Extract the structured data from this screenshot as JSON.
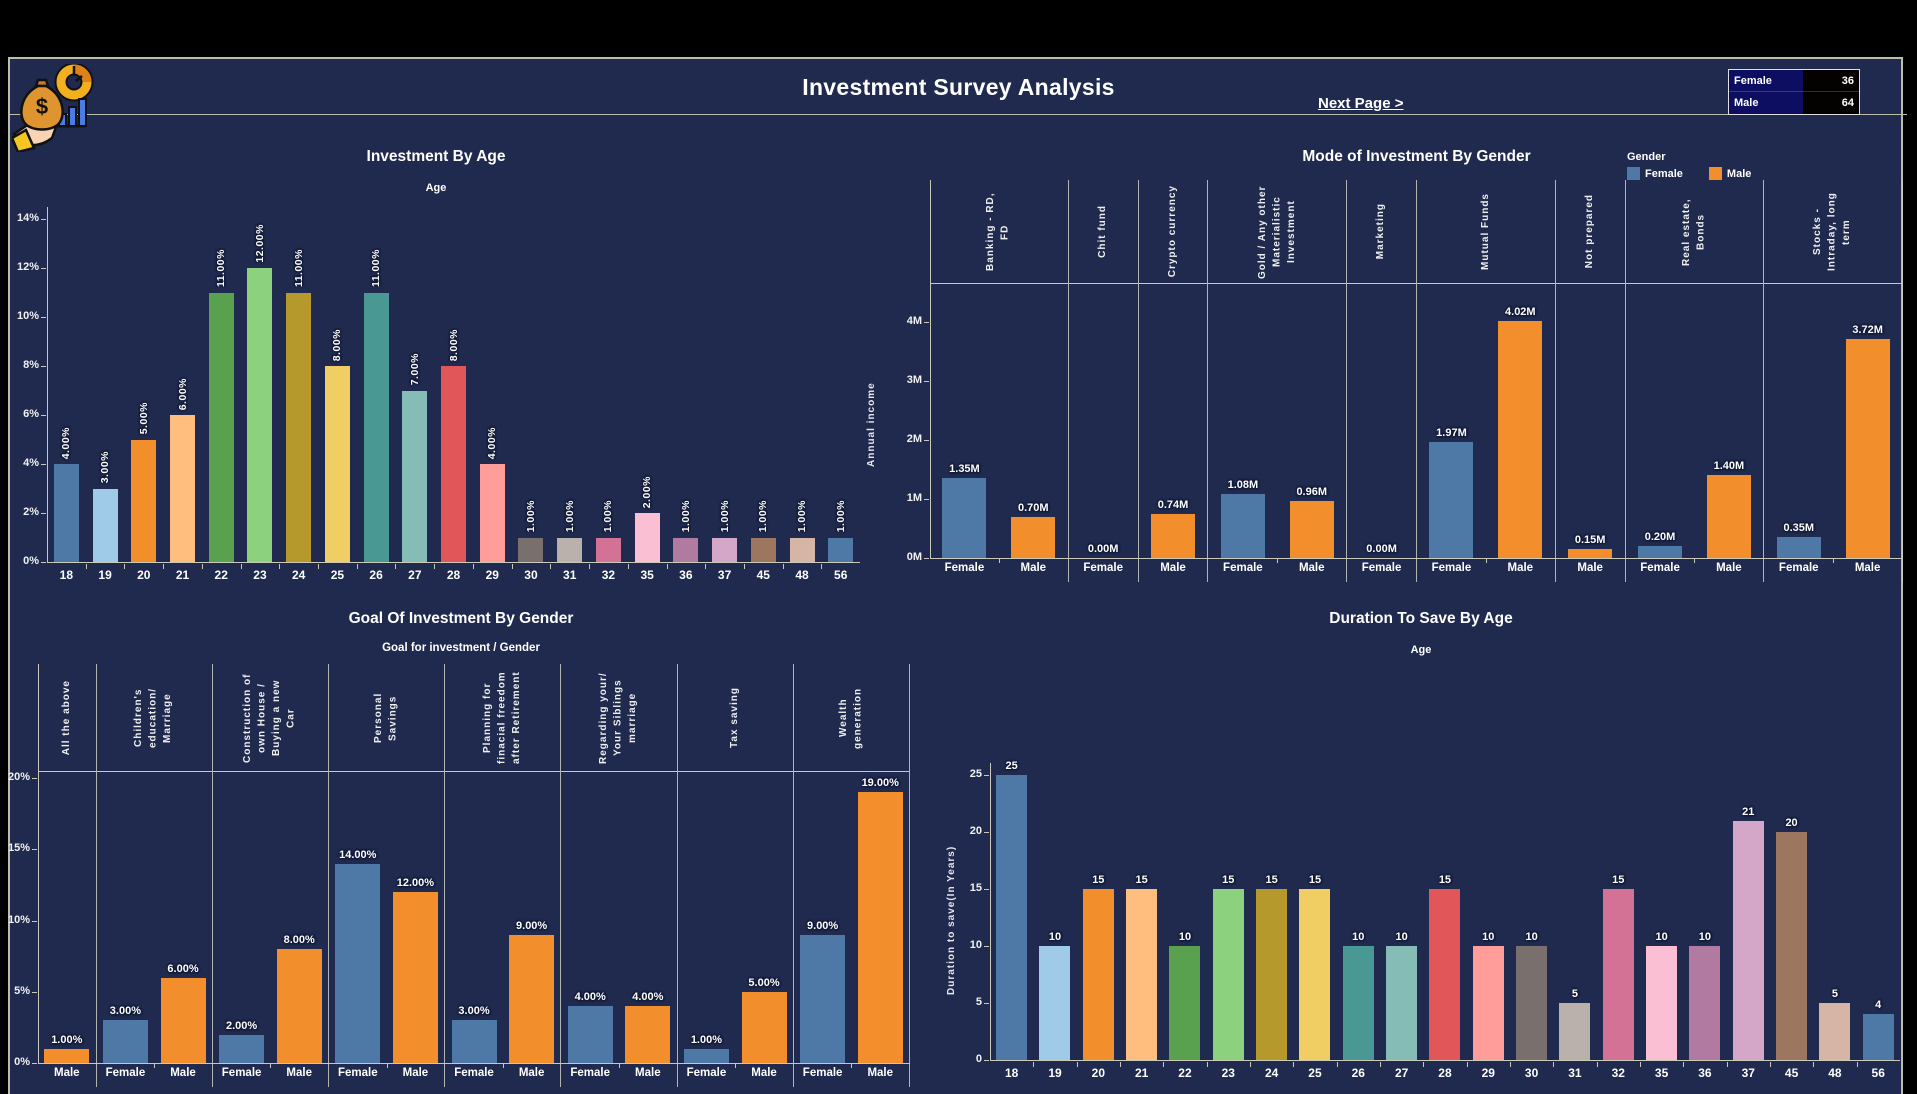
{
  "header": {
    "title": "Investment Survey Analysis",
    "next_page_label": "Next Page >",
    "logo_icons": [
      "hand-icon",
      "money-bag-icon",
      "donut-chart-icon",
      "bar-chart-icon"
    ],
    "summary_table": {
      "rows": [
        {
          "label": "Female",
          "value": "36"
        },
        {
          "label": "Male",
          "value": "64"
        }
      ]
    }
  },
  "colors": {
    "background": "#000000",
    "panel": "#1f2a4e",
    "border": "#bdbdae",
    "female": "#4e79a7",
    "male": "#f28e2b"
  },
  "chart_data": [
    {
      "id": "investment-by-age",
      "type": "bar",
      "title": "Investment By Age",
      "subtitle": "Age",
      "ylim": [
        0,
        14
      ],
      "yticks": [
        "0%",
        "2%",
        "4%",
        "6%",
        "8%",
        "10%",
        "12%",
        "14%"
      ],
      "categories": [
        "18",
        "19",
        "20",
        "21",
        "22",
        "23",
        "24",
        "25",
        "26",
        "27",
        "28",
        "29",
        "30",
        "31",
        "32",
        "35",
        "36",
        "37",
        "45",
        "48",
        "56"
      ],
      "values": [
        4,
        3,
        5,
        6,
        11,
        12,
        11,
        8,
        11,
        7,
        8,
        4,
        1,
        1,
        1,
        2,
        1,
        1,
        1,
        1,
        1
      ],
      "labels": [
        "4.00%",
        "3.00%",
        "5.00%",
        "6.00%",
        "11.00%",
        "12.00%",
        "11.00%",
        "8.00%",
        "11.00%",
        "7.00%",
        "8.00%",
        "4.00%",
        "1.00%",
        "1.00%",
        "1.00%",
        "2.00%",
        "1.00%",
        "1.00%",
        "1.00%",
        "1.00%",
        "1.00%"
      ],
      "bar_colors": [
        "#4E79A7",
        "#A0CBE8",
        "#F28E2B",
        "#FFBE7D",
        "#59A14F",
        "#8CD17D",
        "#B6992D",
        "#F1CE63",
        "#499894",
        "#86BCB6",
        "#E15759",
        "#FF9D9A",
        "#79706E",
        "#BAB0AC",
        "#D37295",
        "#FABFD2",
        "#B07AA1",
        "#D4A6C8",
        "#9D7660",
        "#D7B5A6",
        "#4E79A7"
      ]
    },
    {
      "id": "mode-of-investment-by-gender",
      "type": "grouped-bar",
      "title": "Mode of Investment By Gender",
      "ylabel": "Annual income",
      "ylim": [
        0,
        4
      ],
      "yticks": [
        "0M",
        "1M",
        "2M",
        "3M",
        "4M"
      ],
      "legend": {
        "title": "Gender",
        "items": [
          {
            "label": "Female",
            "color": "#4e79a7"
          },
          {
            "label": "Male",
            "color": "#f28e2b"
          }
        ]
      },
      "groups": [
        {
          "label": "Banking - RD, FD",
          "bars": [
            {
              "gender": "Female",
              "value": 1.35,
              "label": "1.35M"
            },
            {
              "gender": "Male",
              "value": 0.7,
              "label": "0.70M"
            }
          ]
        },
        {
          "label": "Chit fund",
          "bars": [
            {
              "gender": "Female",
              "value": 0,
              "label": "0.00M"
            }
          ]
        },
        {
          "label": "Crypto currency",
          "bars": [
            {
              "gender": "Male",
              "value": 0.74,
              "label": "0.74M"
            }
          ]
        },
        {
          "label": "Gold / Any other Materialistic Investment",
          "bars": [
            {
              "gender": "Female",
              "value": 1.08,
              "label": "1.08M"
            },
            {
              "gender": "Male",
              "value": 0.96,
              "label": "0.96M"
            }
          ]
        },
        {
          "label": "Marketing",
          "bars": [
            {
              "gender": "Female",
              "value": 0,
              "label": "0.00M"
            }
          ]
        },
        {
          "label": "Mutual Funds",
          "bars": [
            {
              "gender": "Female",
              "value": 1.97,
              "label": "1.97M"
            },
            {
              "gender": "Male",
              "value": 4.02,
              "label": "4.02M"
            }
          ]
        },
        {
          "label": "Not prepared",
          "bars": [
            {
              "gender": "Male",
              "value": 0.15,
              "label": "0.15M"
            }
          ]
        },
        {
          "label": "Real estate, Bonds",
          "bars": [
            {
              "gender": "Female",
              "value": 0.2,
              "label": "0.20M"
            },
            {
              "gender": "Male",
              "value": 1.4,
              "label": "1.40M"
            }
          ]
        },
        {
          "label": "Stocks - Intraday, long term",
          "bars": [
            {
              "gender": "Female",
              "value": 0.35,
              "label": "0.35M"
            },
            {
              "gender": "Male",
              "value": 3.72,
              "label": "3.72M"
            }
          ]
        }
      ]
    },
    {
      "id": "goal-of-investment-by-gender",
      "type": "grouped-bar",
      "title": "Goal Of Investment By Gender",
      "subtitle": "Goal for investment / Gender",
      "ylim": [
        0,
        20
      ],
      "yticks": [
        "0%",
        "5%",
        "10%",
        "15%",
        "20%"
      ],
      "groups": [
        {
          "label": "All the above",
          "bars": [
            {
              "gender": "Male",
              "value": 1,
              "label": "1.00%"
            }
          ]
        },
        {
          "label": "Children's education/ Marriage",
          "bars": [
            {
              "gender": "Female",
              "value": 3,
              "label": "3.00%"
            },
            {
              "gender": "Male",
              "value": 6,
              "label": "6.00%"
            }
          ]
        },
        {
          "label": "Construction of own House / Buying a new Car",
          "bars": [
            {
              "gender": "Female",
              "value": 2,
              "label": "2.00%"
            },
            {
              "gender": "Male",
              "value": 8,
              "label": "8.00%"
            }
          ]
        },
        {
          "label": "Personal Savings",
          "bars": [
            {
              "gender": "Female",
              "value": 14,
              "label": "14.00%"
            },
            {
              "gender": "Male",
              "value": 12,
              "label": "12.00%"
            }
          ]
        },
        {
          "label": "Planning for finacial freedom after Retirement",
          "bars": [
            {
              "gender": "Female",
              "value": 3,
              "label": "3.00%"
            },
            {
              "gender": "Male",
              "value": 9,
              "label": "9.00%"
            }
          ]
        },
        {
          "label": "Regarding your/ Your Siblings marriage",
          "bars": [
            {
              "gender": "Female",
              "value": 4,
              "label": "4.00%"
            },
            {
              "gender": "Male",
              "value": 4,
              "label": "4.00%"
            }
          ]
        },
        {
          "label": "Tax saving",
          "bars": [
            {
              "gender": "Female",
              "value": 1,
              "label": "1.00%"
            },
            {
              "gender": "Male",
              "value": 5,
              "label": "5.00%"
            }
          ]
        },
        {
          "label": "Wealth generation",
          "bars": [
            {
              "gender": "Female",
              "value": 9,
              "label": "9.00%"
            },
            {
              "gender": "Male",
              "value": 19,
              "label": "19.00%"
            }
          ]
        }
      ]
    },
    {
      "id": "duration-to-save-by-age",
      "type": "bar",
      "title": "Duration To Save By Age",
      "subtitle": "Age",
      "ylabel": "Duration to save(In Years)",
      "ylim": [
        0,
        25
      ],
      "yticks": [
        "0",
        "5",
        "10",
        "15",
        "20",
        "25"
      ],
      "categories": [
        "18",
        "19",
        "20",
        "21",
        "22",
        "23",
        "24",
        "25",
        "26",
        "27",
        "28",
        "29",
        "30",
        "31",
        "32",
        "35",
        "36",
        "37",
        "45",
        "48",
        "56"
      ],
      "values": [
        25,
        10,
        15,
        15,
        10,
        15,
        15,
        15,
        10,
        10,
        15,
        10,
        10,
        5,
        15,
        10,
        10,
        21,
        20,
        5,
        4
      ],
      "labels": [
        "25",
        "10",
        "15",
        "15",
        "10",
        "15",
        "15",
        "15",
        "10",
        "10",
        "15",
        "10",
        "10",
        "5",
        "15",
        "10",
        "10",
        "21",
        "20",
        "5",
        "4"
      ],
      "bar_colors": [
        "#4E79A7",
        "#A0CBE8",
        "#F28E2B",
        "#FFBE7D",
        "#59A14F",
        "#8CD17D",
        "#B6992D",
        "#F1CE63",
        "#499894",
        "#86BCB6",
        "#E15759",
        "#FF9D9A",
        "#79706E",
        "#BAB0AC",
        "#D37295",
        "#FABFD2",
        "#B07AA1",
        "#D4A6C8",
        "#9D7660",
        "#D7B5A6",
        "#4E79A7"
      ]
    }
  ]
}
